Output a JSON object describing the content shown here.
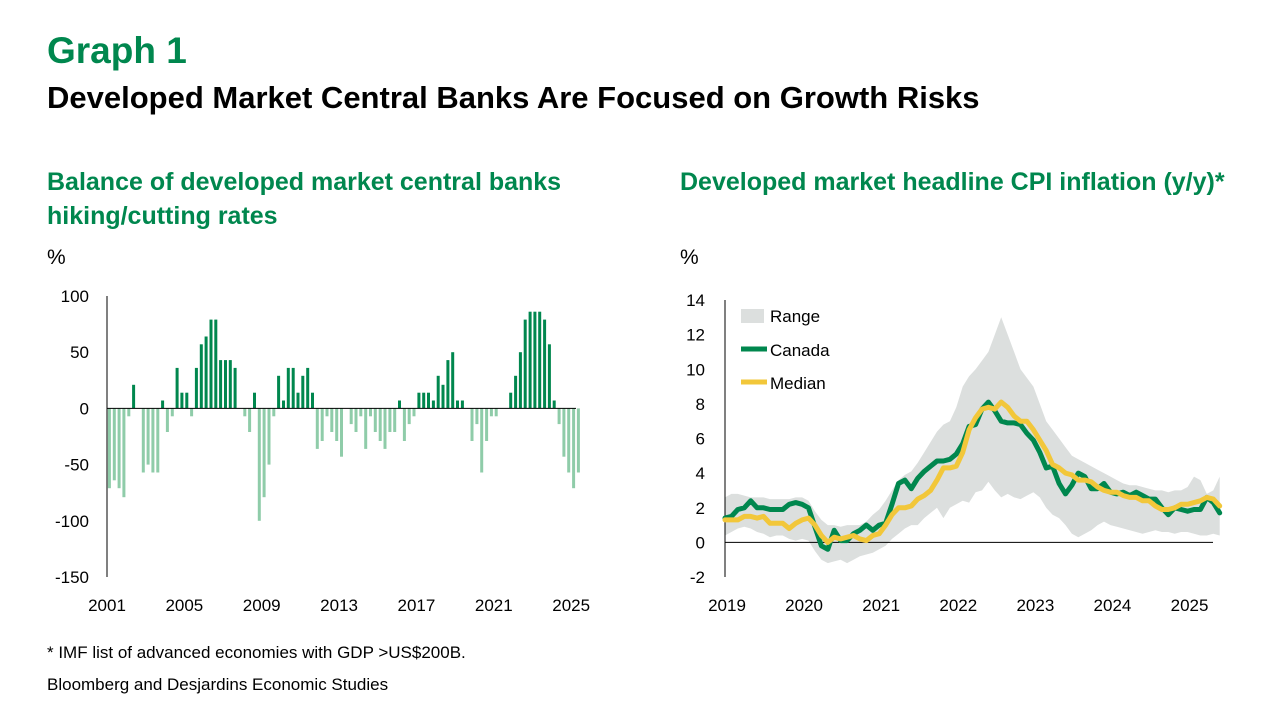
{
  "header": {
    "graph_label": "Graph 1",
    "title": "Developed Market Central Banks Are Focused on Growth Risks"
  },
  "footer": {
    "footnote": "* IMF list of advanced economies with GDP >US$200B.",
    "source": "Bloomberg and Desjardins Economic Studies"
  },
  "colors": {
    "title_green": "#00874E",
    "bar_positive": "#00874E",
    "bar_negative": "#8FCCA9",
    "canada_line": "#00874E",
    "median_line": "#F2C73A",
    "range_fill": "#DCDFDE"
  },
  "chart_data": [
    {
      "type": "bar",
      "title": "Balance of developed market central banks hiking/cutting rates",
      "ylabel": "%",
      "ylim": [
        -150,
        100
      ],
      "yticks": [
        "100",
        "50",
        "0",
        "-50",
        "-100",
        "-150"
      ],
      "ytick_values": [
        100,
        50,
        0,
        -50,
        -100,
        -150
      ],
      "xlim": [
        2001,
        2025.25
      ],
      "xticks": [
        "2001",
        "2005",
        "2009",
        "2013",
        "2017",
        "2021",
        "2025"
      ],
      "xtick_values": [
        2001,
        2005,
        2009,
        2013,
        2017,
        2021,
        2025
      ],
      "grid": false,
      "x_start": 2001,
      "x_step": 0.25,
      "values": [
        -71,
        -64,
        -71,
        -79,
        -7,
        21,
        0,
        -57,
        -50,
        -57,
        -57,
        7,
        -21,
        -7,
        36,
        14,
        14,
        -7,
        36,
        57,
        64,
        79,
        79,
        43,
        43,
        43,
        36,
        0,
        -7,
        -21,
        14,
        -100,
        -79,
        -50,
        -7,
        29,
        7,
        36,
        36,
        14,
        29,
        36,
        14,
        -36,
        -29,
        -7,
        -21,
        -29,
        -43,
        0,
        -14,
        -21,
        -7,
        -36,
        -7,
        -21,
        -29,
        -36,
        -21,
        -21,
        7,
        -29,
        -14,
        -7,
        14,
        14,
        14,
        7,
        29,
        21,
        43,
        50,
        7,
        7,
        0,
        -29,
        -14,
        -57,
        -29,
        -7,
        -7,
        0,
        0,
        14,
        29,
        50,
        79,
        86,
        86,
        86,
        79,
        57,
        7,
        -14,
        -43,
        -57,
        -71,
        -57
      ]
    },
    {
      "type": "line",
      "title": "Developed market headline CPI inflation (y/y)*",
      "ylabel": "%",
      "ylim": [
        -2,
        14
      ],
      "yticks": [
        "14",
        "12",
        "10",
        "8",
        "6",
        "4",
        "2",
        "0",
        "-2"
      ],
      "ytick_values": [
        14,
        12,
        10,
        8,
        6,
        4,
        2,
        0,
        -2
      ],
      "xlim": [
        2019,
        2025.33
      ],
      "xticks": [
        "2019",
        "2020",
        "2021",
        "2022",
        "2023",
        "2024",
        "2025"
      ],
      "xtick_values": [
        2019,
        2020,
        2021,
        2022,
        2023,
        2024,
        2025
      ],
      "grid": false,
      "legend": [
        "Range",
        "Canada",
        "Median"
      ],
      "legend_position": "top-left",
      "x_start": 2019,
      "x_step": 0.083333,
      "series": [
        {
          "name": "Canada",
          "values": [
            1.4,
            1.5,
            1.9,
            2.0,
            2.4,
            2.0,
            2.0,
            1.9,
            1.9,
            1.9,
            2.2,
            2.3,
            2.2,
            2.0,
            0.9,
            -0.2,
            -0.4,
            0.7,
            0.1,
            0.1,
            0.5,
            0.7,
            1.0,
            0.7,
            1.0,
            1.1,
            2.2,
            3.4,
            3.6,
            3.1,
            3.7,
            4.1,
            4.4,
            4.7,
            4.7,
            4.8,
            5.1,
            5.7,
            6.7,
            6.8,
            7.7,
            8.1,
            7.6,
            7.0,
            6.9,
            6.9,
            6.8,
            6.3,
            5.9,
            5.2,
            4.3,
            4.4,
            3.4,
            2.8,
            3.3,
            4.0,
            3.8,
            3.1,
            3.1,
            3.4,
            2.9,
            2.8,
            2.9,
            2.7,
            2.9,
            2.7,
            2.5,
            2.5,
            2.0,
            1.6,
            2.0,
            1.9,
            1.8,
            1.9,
            1.9,
            2.6,
            2.3,
            1.7
          ]
        },
        {
          "name": "Median",
          "values": [
            1.3,
            1.3,
            1.3,
            1.5,
            1.5,
            1.4,
            1.5,
            1.1,
            1.1,
            1.1,
            0.8,
            1.1,
            1.3,
            1.4,
            1.0,
            0.4,
            0.0,
            0.3,
            0.2,
            0.3,
            0.4,
            0.2,
            0.1,
            0.4,
            0.5,
            1.0,
            1.6,
            2.0,
            2.0,
            2.1,
            2.5,
            2.7,
            3.0,
            3.6,
            4.3,
            4.3,
            4.4,
            5.2,
            6.5,
            7.2,
            7.7,
            7.8,
            7.7,
            8.1,
            7.8,
            7.3,
            7.0,
            7.0,
            6.5,
            5.9,
            5.3,
            4.5,
            4.3,
            4.0,
            3.9,
            3.6,
            3.6,
            3.5,
            3.2,
            3.0,
            2.9,
            2.9,
            2.7,
            2.6,
            2.6,
            2.4,
            2.4,
            2.1,
            1.9,
            1.9,
            2.0,
            2.2,
            2.2,
            2.3,
            2.4,
            2.6,
            2.5,
            2.1
          ]
        },
        {
          "name": "Range",
          "upper": [
            2.6,
            2.8,
            2.8,
            2.7,
            2.6,
            2.6,
            2.6,
            2.5,
            2.5,
            2.5,
            2.5,
            2.6,
            2.6,
            2.4,
            1.8,
            1.3,
            1.0,
            1.0,
            0.9,
            1.0,
            1.0,
            1.0,
            1.2,
            1.6,
            1.9,
            2.4,
            3.0,
            3.6,
            3.9,
            4.1,
            4.6,
            5.2,
            5.8,
            6.4,
            6.8,
            7.0,
            7.8,
            9.0,
            9.6,
            10.0,
            10.5,
            11.0,
            12.0,
            13.0,
            12.0,
            11.0,
            10.0,
            9.5,
            9.0,
            8.0,
            7.0,
            6.5,
            6.0,
            5.5,
            5.0,
            4.8,
            4.6,
            4.4,
            4.2,
            4.0,
            3.8,
            3.6,
            3.4,
            3.3,
            3.3,
            3.2,
            3.1,
            3.0,
            3.0,
            2.9,
            3.0,
            3.0,
            3.2,
            3.8,
            3.6,
            2.8,
            3.0,
            3.8
          ]
        },
        {
          "name": "Range-lower",
          "lower": [
            0.4,
            0.6,
            0.8,
            0.9,
            0.8,
            0.6,
            0.5,
            0.3,
            0.4,
            0.4,
            0.2,
            0.1,
            0.2,
            0.1,
            -0.5,
            -1.0,
            -1.2,
            -1.1,
            -1.0,
            -1.2,
            -1.0,
            -0.8,
            -0.7,
            -0.6,
            -0.4,
            -0.2,
            0.2,
            0.5,
            0.8,
            1.0,
            1.0,
            1.4,
            1.7,
            2.0,
            1.4,
            2.0,
            2.2,
            2.4,
            2.3,
            2.9,
            3.0,
            3.5,
            3.0,
            2.6,
            2.8,
            2.6,
            2.5,
            2.7,
            2.9,
            2.6,
            2.0,
            1.6,
            1.4,
            1.0,
            0.5,
            0.3,
            0.5,
            0.7,
            1.0,
            1.2,
            1.0,
            0.9,
            0.8,
            0.7,
            0.6,
            0.5,
            0.6,
            0.7,
            0.6,
            0.6,
            0.5,
            0.6,
            0.6,
            0.5,
            0.4,
            0.4,
            0.5,
            0.4
          ]
        }
      ]
    }
  ]
}
